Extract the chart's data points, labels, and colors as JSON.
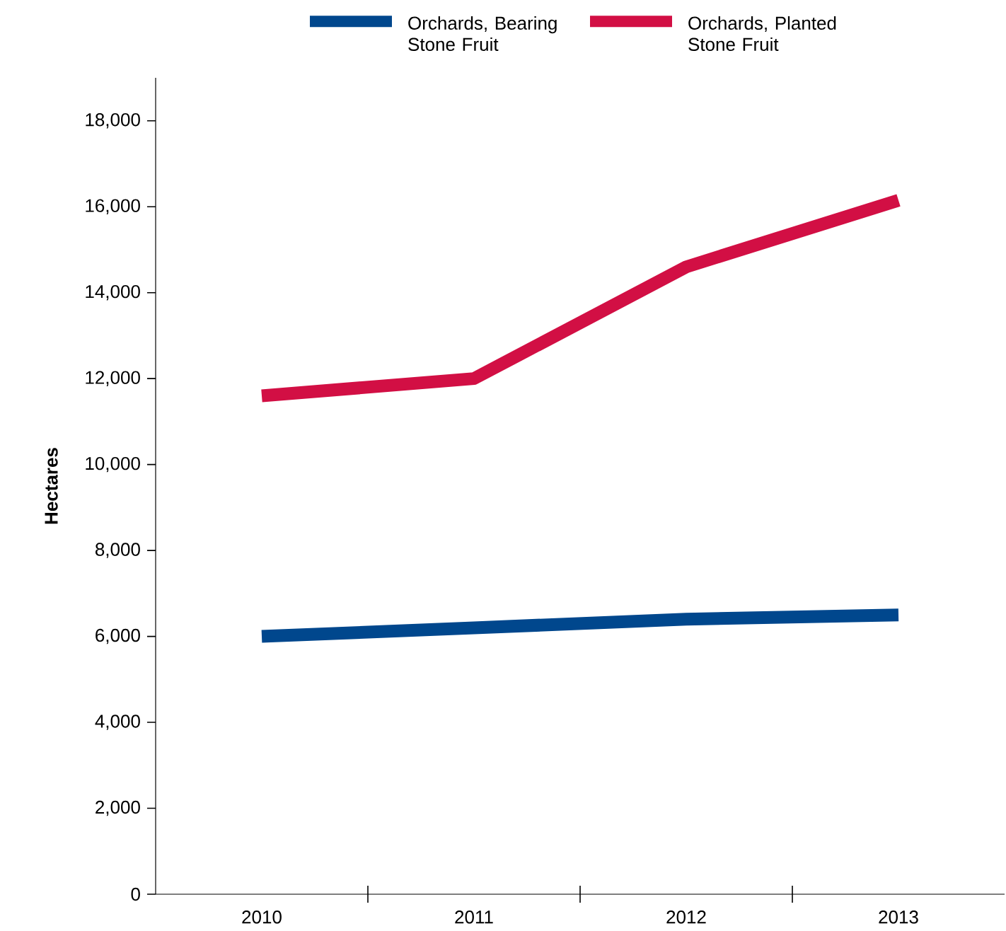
{
  "chart_data": {
    "type": "line",
    "ylabel": "Hectares",
    "categories": [
      "2010",
      "2011",
      "2012",
      "2013"
    ],
    "series": [
      {
        "name": "Orchards, Bearing Stone Fruit",
        "color": "#00478d",
        "values": [
          6000,
          6200,
          6400,
          6500
        ]
      },
      {
        "name": "Orchards, Planted Stone Fruit",
        "color": "#d20f44",
        "values": [
          11600,
          12000,
          14600,
          16150
        ]
      }
    ],
    "ylim": [
      0,
      19000
    ],
    "yticks": [
      0,
      {
        "value": 2000,
        "label": "2,000"
      },
      {
        "value": 4000,
        "label": "4,000"
      },
      {
        "value": 6000,
        "label": "6,000"
      },
      {
        "value": 8000,
        "label": "8,000"
      },
      {
        "value": 10000,
        "label": "10,000"
      },
      {
        "value": 12000,
        "label": "12,000"
      },
      {
        "value": 14000,
        "label": "14,000"
      },
      {
        "value": 16000,
        "label": "16,000"
      },
      {
        "value": 18000,
        "label": "18,000"
      }
    ],
    "grid": false,
    "legend": "top",
    "line_style": "solid"
  }
}
